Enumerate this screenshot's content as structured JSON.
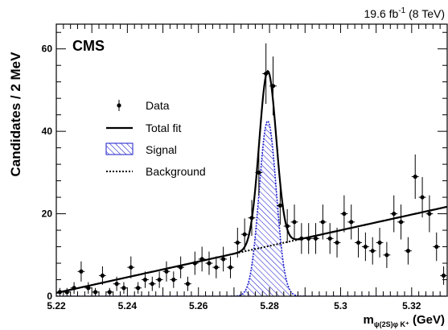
{
  "chart_data": {
    "type": "scatter",
    "lumi_label": {
      "prefix": "19.6 fb",
      "sup": "-1",
      "suffix": " (8 TeV)"
    },
    "experiment_label": "CMS",
    "ylabel": "Candidates / 2 MeV",
    "xlabel": {
      "main": "m",
      "sub": "ψ(2S)φ K⁺",
      "unit": " (GeV)"
    },
    "xlim": [
      5.22,
      5.33
    ],
    "ylim": [
      0,
      66
    ],
    "x_ticks": [
      "5.22",
      "5.24",
      "5.26",
      "5.28",
      "5.3",
      "5.32"
    ],
    "x_tick_values": [
      5.22,
      5.24,
      5.26,
      5.28,
      5.3,
      5.32
    ],
    "y_ticks": [
      "0",
      "20",
      "40",
      "60"
    ],
    "y_tick_values": [
      0,
      20,
      40,
      60
    ],
    "legend": {
      "position": "top-left",
      "items": [
        {
          "label": "Data",
          "style": "marker"
        },
        {
          "label": "Total fit",
          "style": "solid"
        },
        {
          "label": "Signal",
          "style": "hatched"
        },
        {
          "label": "Background",
          "style": "dotted"
        }
      ]
    },
    "colors": {
      "signal": "#1a1acc",
      "fit": "#000000",
      "data": "#000000"
    },
    "data_points": {
      "x": [
        5.221,
        5.223,
        5.225,
        5.227,
        5.229,
        5.231,
        5.233,
        5.235,
        5.237,
        5.239,
        5.241,
        5.243,
        5.245,
        5.247,
        5.249,
        5.251,
        5.253,
        5.255,
        5.257,
        5.259,
        5.261,
        5.263,
        5.265,
        5.267,
        5.269,
        5.271,
        5.273,
        5.275,
        5.277,
        5.279,
        5.281,
        5.283,
        5.285,
        5.287,
        5.289,
        5.291,
        5.293,
        5.295,
        5.297,
        5.299,
        5.301,
        5.303,
        5.305,
        5.307,
        5.309,
        5.311,
        5.313,
        5.315,
        5.317,
        5.319,
        5.321,
        5.323,
        5.325,
        5.327,
        5.329
      ],
      "y": [
        1,
        1,
        2,
        6,
        2,
        1,
        5,
        1,
        3,
        2,
        7,
        2,
        4,
        3,
        4,
        6,
        4,
        7,
        3,
        8,
        9,
        8,
        7,
        9,
        7,
        13,
        15,
        19,
        30,
        54,
        51,
        22,
        17,
        18,
        14,
        14,
        14,
        18,
        14,
        13,
        20,
        18,
        13,
        12,
        11,
        13,
        10,
        20,
        18,
        11,
        29,
        24,
        20,
        12,
        5
      ],
      "err": [
        1.0,
        1.0,
        1.41,
        2.45,
        1.41,
        1.0,
        2.24,
        1.0,
        1.73,
        1.41,
        2.65,
        1.41,
        2.0,
        1.73,
        2.0,
        2.45,
        2.0,
        2.65,
        1.73,
        2.83,
        3.0,
        2.83,
        2.65,
        3.0,
        2.65,
        3.61,
        3.87,
        4.36,
        5.48,
        7.35,
        7.14,
        4.69,
        4.12,
        4.24,
        3.74,
        3.74,
        3.74,
        4.24,
        3.74,
        3.61,
        4.47,
        4.24,
        3.61,
        3.46,
        3.32,
        3.61,
        3.16,
        4.47,
        4.24,
        3.32,
        5.39,
        4.9,
        4.47,
        3.46,
        2.24
      ]
    },
    "fit_model": {
      "background": {
        "slope_per_gev": 190,
        "intercept_at_x0": 0.8,
        "x0": 5.22
      },
      "signal": {
        "mean": 5.2795,
        "sigma": 0.0024,
        "amplitude": 42.5
      }
    }
  }
}
